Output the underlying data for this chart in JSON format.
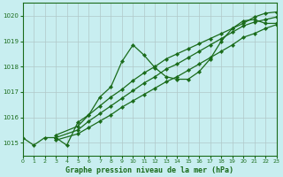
{
  "title": "Graphe pression niveau de la mer (hPa)",
  "bg_color": "#c8eef0",
  "grid_color": "#b0c8c8",
  "line_color": "#1a6b1a",
  "x_min": 0,
  "x_max": 23,
  "y_min": 1014.5,
  "y_max": 1020.5,
  "yticks": [
    1015,
    1016,
    1017,
    1018,
    1019,
    1020
  ],
  "xticks": [
    0,
    1,
    2,
    3,
    4,
    5,
    6,
    7,
    8,
    9,
    10,
    11,
    12,
    13,
    14,
    15,
    16,
    17,
    18,
    19,
    20,
    21,
    22,
    23
  ],
  "series": [
    {
      "x": [
        0,
        1,
        2,
        3,
        4,
        5,
        6,
        7,
        8,
        9,
        10,
        11,
        12,
        13,
        14,
        15,
        16,
        17,
        18,
        19,
        20,
        21,
        22,
        23
      ],
      "y": [
        1015.2,
        1014.9,
        1015.2,
        1015.2,
        1014.9,
        1015.8,
        1016.1,
        1016.8,
        1017.2,
        1018.2,
        1018.85,
        1018.45,
        1017.95,
        1017.6,
        1017.5,
        1017.5,
        1017.8,
        1018.3,
        1019.0,
        1019.5,
        1019.8,
        1019.85,
        1019.7,
        1019.7
      ]
    },
    {
      "x": [
        3,
        5,
        6,
        7,
        8,
        9,
        10,
        11,
        12,
        13,
        14,
        15,
        16,
        17,
        18,
        19,
        20,
        21,
        22,
        23
      ],
      "y": [
        1015.2,
        1015.5,
        1015.85,
        1016.15,
        1016.45,
        1016.75,
        1017.05,
        1017.35,
        1017.6,
        1017.9,
        1018.1,
        1018.35,
        1018.6,
        1018.85,
        1019.1,
        1019.35,
        1019.6,
        1019.75,
        1019.85,
        1019.95
      ]
    },
    {
      "x": [
        3,
        5,
        6,
        7,
        8,
        9,
        10,
        11,
        12,
        13,
        14,
        15,
        16,
        17,
        18,
        19,
        20,
        21,
        22,
        23
      ],
      "y": [
        1015.1,
        1015.35,
        1015.6,
        1015.85,
        1016.1,
        1016.4,
        1016.65,
        1016.9,
        1017.15,
        1017.4,
        1017.6,
        1017.85,
        1018.1,
        1018.35,
        1018.6,
        1018.85,
        1019.15,
        1019.3,
        1019.5,
        1019.65
      ]
    },
    {
      "x": [
        3,
        5,
        6,
        7,
        8,
        9,
        10,
        11,
        12,
        13,
        14,
        15,
        16,
        17,
        18,
        19,
        20,
        21,
        22,
        23
      ],
      "y": [
        1015.3,
        1015.65,
        1016.1,
        1016.45,
        1016.8,
        1017.1,
        1017.45,
        1017.75,
        1018.0,
        1018.3,
        1018.5,
        1018.7,
        1018.9,
        1019.1,
        1019.3,
        1019.5,
        1019.7,
        1019.95,
        1020.1,
        1020.15
      ]
    }
  ],
  "figwidth": 3.2,
  "figheight": 2.0,
  "dpi": 100
}
